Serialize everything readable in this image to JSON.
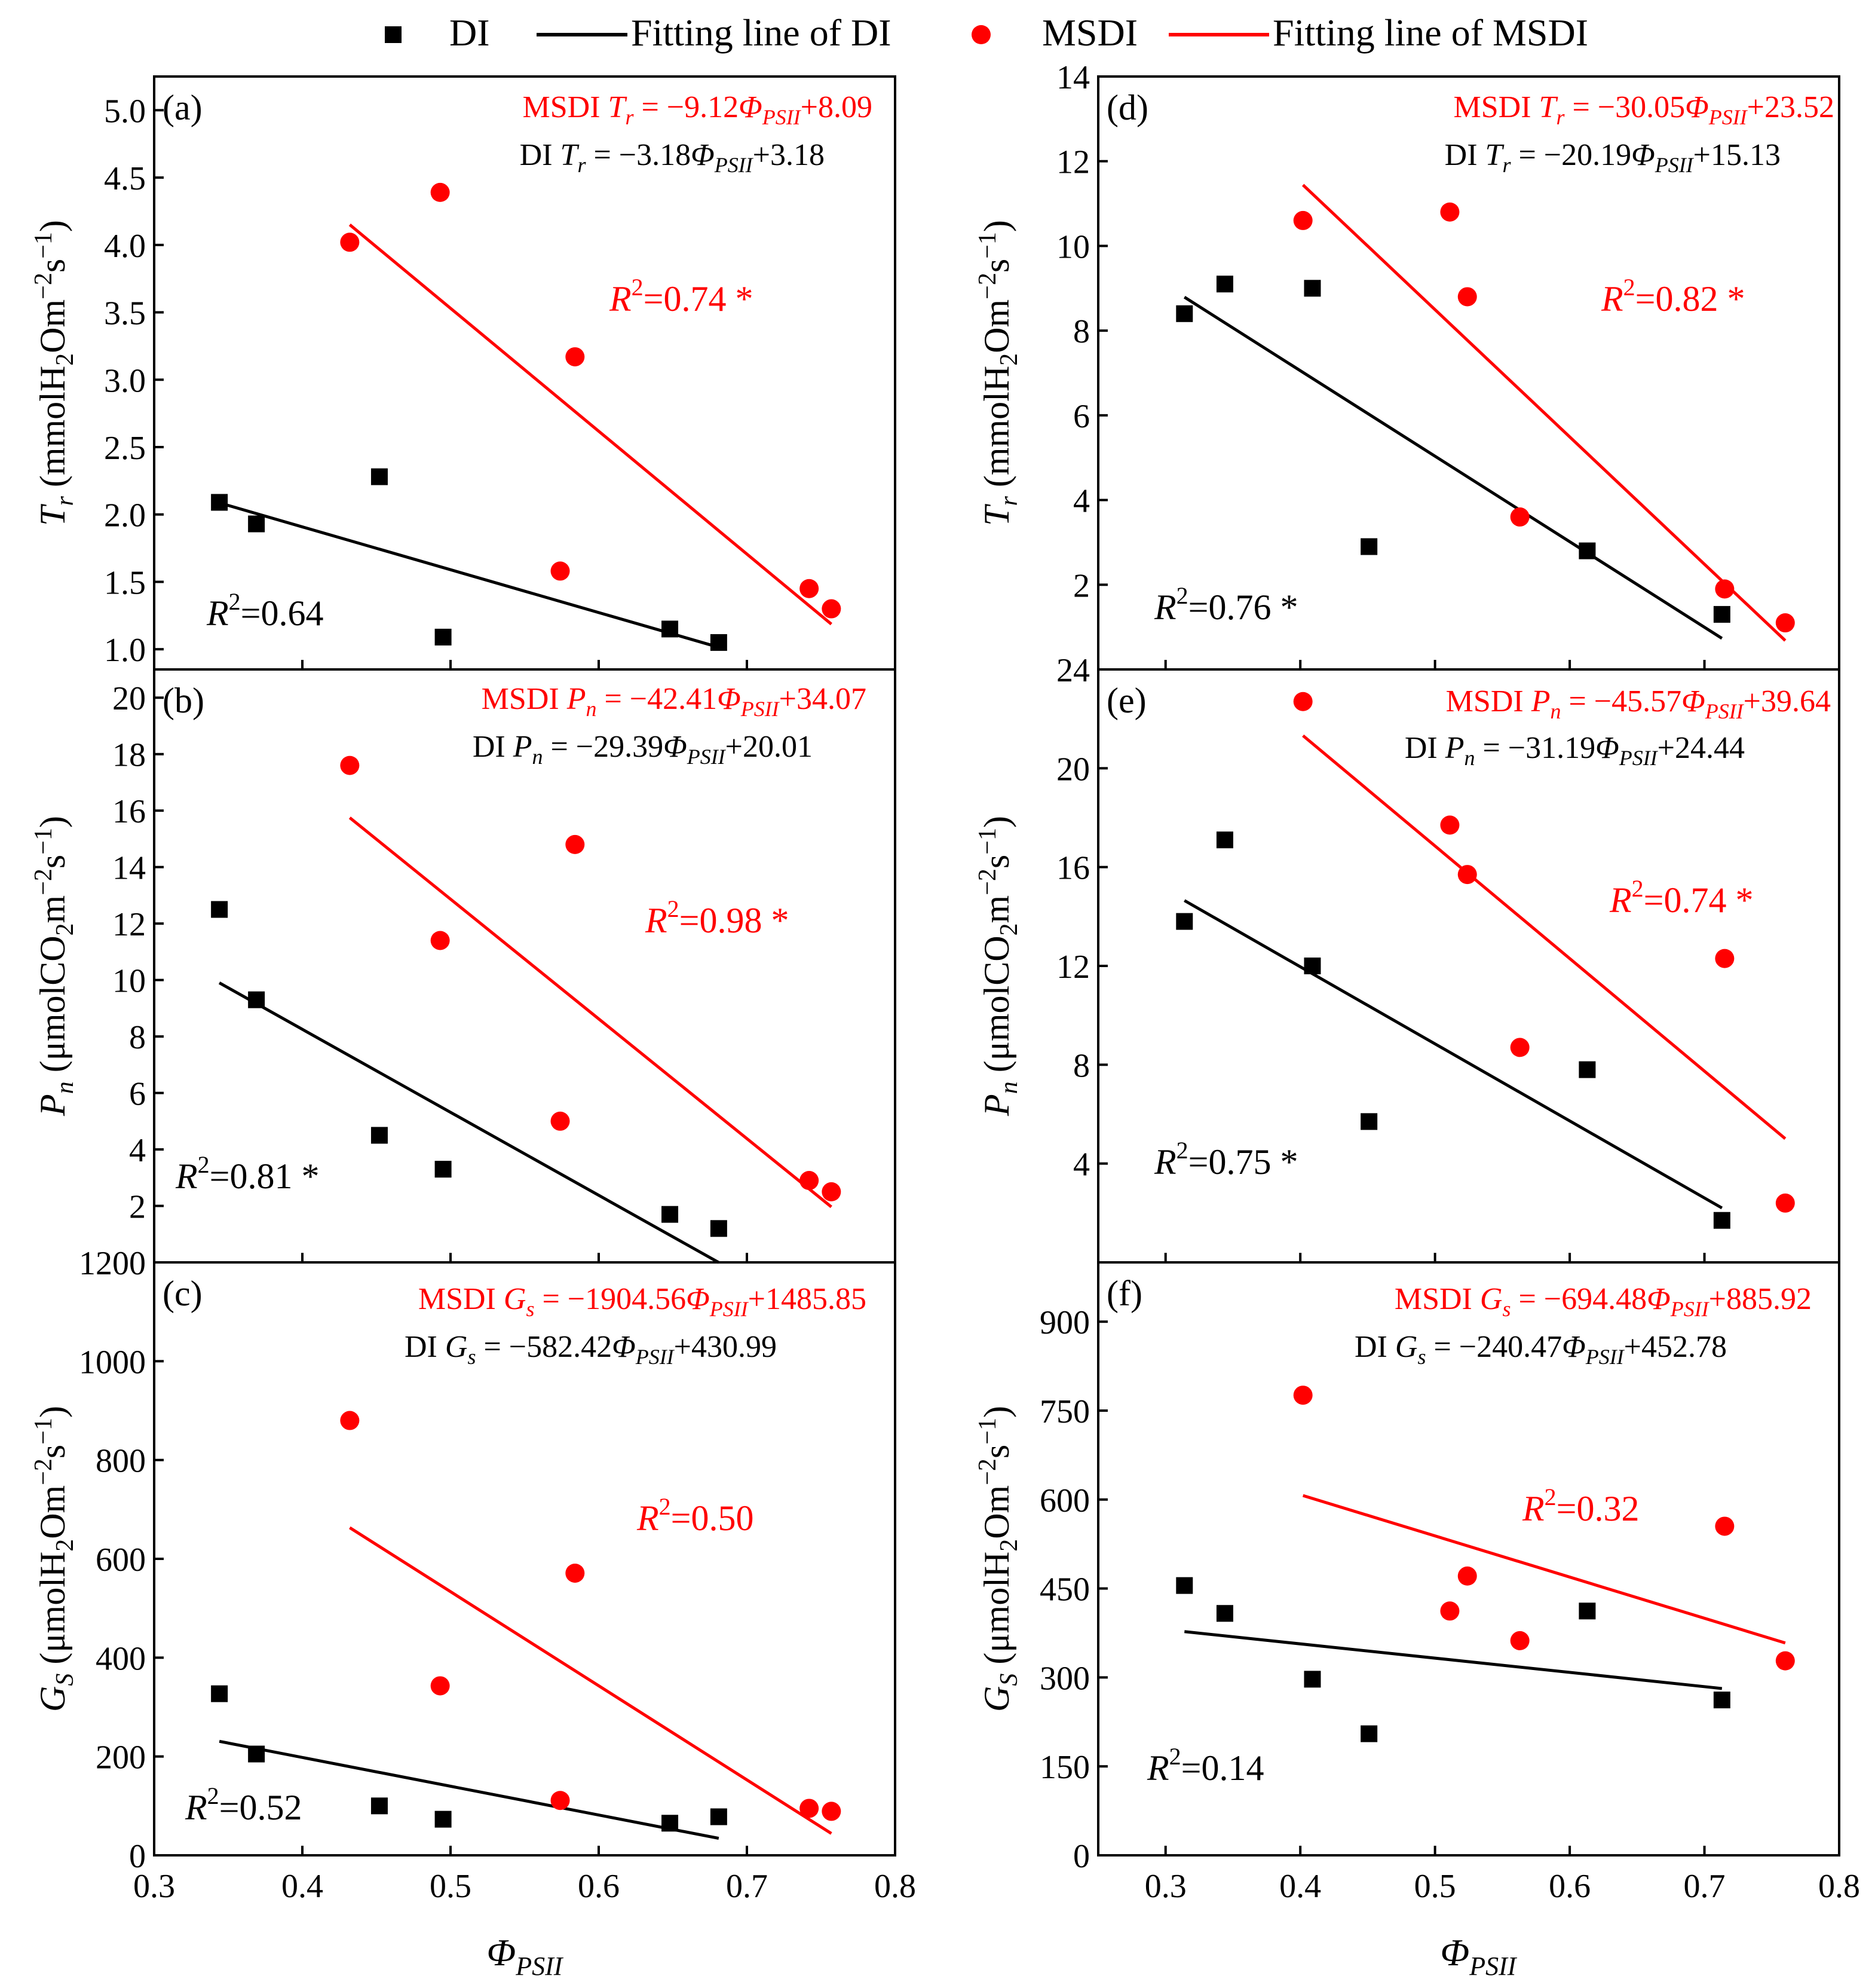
{
  "legend": {
    "di_label": "DI",
    "di_fit_label": "Fitting line of DI",
    "msdi_label": "MSDI",
    "msdi_fit_label": "Fitting line of MSDI"
  },
  "colors": {
    "di": "#000000",
    "msdi": "#ff0000",
    "axis": "#000000",
    "background": "#ffffff"
  },
  "x_axis": {
    "label_main": "Φ",
    "label_sub": "PSII",
    "left": {
      "range": [
        0.3,
        0.8
      ],
      "ticks": [
        0.3,
        0.4,
        0.5,
        0.6,
        0.7,
        0.8
      ],
      "tick_labels": [
        "0.3",
        "0.4",
        "0.5",
        "0.6",
        "0.7",
        "0.8"
      ]
    },
    "right": {
      "range": [
        0.25,
        0.8
      ],
      "ticks": [
        0.3,
        0.4,
        0.5,
        0.6,
        0.7,
        0.8
      ],
      "tick_labels": [
        "0.3",
        "0.4",
        "0.5",
        "0.6",
        "0.7",
        "0.8"
      ]
    }
  },
  "chart_data": [
    {
      "type": "scatter",
      "panel": "(a)",
      "ylabel": {
        "var": "T",
        "var_sub": "r",
        "pre": "(mmolH",
        "chem_sub": "2",
        "mid": "Om",
        "sup1": "−2",
        "post": "s",
        "sup2": "−1",
        "end": ")"
      },
      "xlim": [
        0.3,
        0.8
      ],
      "ylim": [
        0.85,
        5.25
      ],
      "yticks": [
        1.0,
        1.5,
        2.0,
        2.5,
        3.0,
        3.5,
        4.0,
        4.5,
        5.0
      ],
      "ytick_labels": [
        "1.0",
        "1.5",
        "2.0",
        "2.5",
        "3.0",
        "3.5",
        "4.0",
        "4.5",
        "5.0"
      ],
      "series": [
        {
          "name": "DI",
          "marker": "square",
          "x": [
            0.344,
            0.369,
            0.452,
            0.495,
            0.648,
            0.681
          ],
          "y": [
            2.09,
            1.93,
            2.28,
            1.09,
            1.15,
            1.05
          ],
          "fit": {
            "slope": -3.18,
            "intercept": 3.18,
            "x_range": [
              0.344,
              0.681
            ]
          }
        },
        {
          "name": "MSDI",
          "marker": "circle",
          "x": [
            0.432,
            0.493,
            0.584,
            0.574,
            0.742,
            0.757
          ],
          "y": [
            4.02,
            4.39,
            3.17,
            1.58,
            1.45,
            1.3
          ],
          "fit": {
            "slope": -9.12,
            "intercept": 8.09,
            "x_range": [
              0.432,
              0.757
            ]
          }
        }
      ],
      "equations": [
        {
          "series": "MSDI",
          "text_pre": "MSDI ",
          "var": "T",
          "var_sub": "r",
          "text_mid": " = −9.12",
          "text_post": "+8.09"
        },
        {
          "series": "DI",
          "text_pre": "DI ",
          "var": "T",
          "var_sub": "r",
          "text_mid": " = −3.18",
          "text_post": "+3.18"
        }
      ],
      "r2": [
        {
          "series": "MSDI",
          "value": "=0.74 *"
        },
        {
          "series": "DI",
          "value": "=0.64"
        }
      ]
    },
    {
      "type": "scatter",
      "panel": "(b)",
      "ylabel": {
        "var": "P",
        "var_sub": "n",
        "pre": "(μmolCO",
        "chem_sub": "2",
        "mid": "m",
        "sup1": "−2",
        "post": "s",
        "sup2": "−1",
        "end": ")"
      },
      "xlim": [
        0.3,
        0.8
      ],
      "ylim": [
        0,
        21
      ],
      "yticks": [
        2,
        4,
        6,
        8,
        10,
        12,
        14,
        16,
        18,
        20
      ],
      "ytick_labels": [
        "2",
        "4",
        "6",
        "8",
        "10",
        "12",
        "14",
        "16",
        "18",
        "20"
      ],
      "series": [
        {
          "name": "DI",
          "marker": "square",
          "x": [
            0.344,
            0.369,
            0.452,
            0.495,
            0.648,
            0.681
          ],
          "y": [
            12.5,
            9.3,
            4.5,
            3.3,
            1.7,
            1.2
          ],
          "fit": {
            "slope": -29.39,
            "intercept": 20.01,
            "x_range": [
              0.344,
              0.681
            ]
          }
        },
        {
          "name": "MSDI",
          "marker": "circle",
          "x": [
            0.432,
            0.493,
            0.584,
            0.574,
            0.742,
            0.757
          ],
          "y": [
            17.6,
            11.4,
            14.8,
            5.0,
            2.9,
            2.5
          ],
          "fit": {
            "slope": -42.41,
            "intercept": 34.07,
            "x_range": [
              0.432,
              0.757
            ]
          }
        }
      ],
      "equations": [
        {
          "series": "MSDI",
          "text_pre": "MSDI ",
          "var": "P",
          "var_sub": "n",
          "text_mid": " = −42.41",
          "text_post": "+34.07"
        },
        {
          "series": "DI",
          "text_pre": "DI ",
          "var": "P",
          "var_sub": "n",
          "text_mid": " = −29.39",
          "text_post": "+20.01"
        }
      ],
      "r2": [
        {
          "series": "MSDI",
          "value": "=0.98 *"
        },
        {
          "series": "DI",
          "value": "=0.81 *"
        }
      ]
    },
    {
      "type": "scatter",
      "panel": "(c)",
      "ylabel": {
        "var": "G",
        "var_sub": "S",
        "pre": "(μmolH",
        "chem_sub": "2",
        "mid": "Om",
        "sup1": "−2",
        "post": "s",
        "sup2": "−1",
        "end": ")"
      },
      "xlim": [
        0.3,
        0.8
      ],
      "ylim": [
        0,
        1200
      ],
      "yticks": [
        0,
        200,
        400,
        600,
        800,
        1000,
        1200
      ],
      "ytick_labels": [
        "0",
        "200",
        "400",
        "600",
        "800",
        "1000",
        "1200"
      ],
      "series": [
        {
          "name": "DI",
          "marker": "square",
          "x": [
            0.344,
            0.369,
            0.452,
            0.495,
            0.648,
            0.681
          ],
          "y": [
            327,
            205,
            100,
            73,
            65,
            78
          ],
          "fit": {
            "slope": -582.42,
            "intercept": 430.99,
            "x_range": [
              0.344,
              0.681
            ]
          }
        },
        {
          "name": "MSDI",
          "marker": "circle",
          "x": [
            0.432,
            0.493,
            0.584,
            0.574,
            0.742,
            0.757
          ],
          "y": [
            880,
            343,
            571,
            111,
            95,
            89
          ],
          "fit": {
            "slope": -1904.56,
            "intercept": 1485.85,
            "x_range": [
              0.432,
              0.757
            ]
          }
        }
      ],
      "equations": [
        {
          "series": "MSDI",
          "text_pre": "MSDI ",
          "var": "G",
          "var_sub": "s",
          "text_mid": " = −1904.56",
          "text_post": "+1485.85"
        },
        {
          "series": "DI",
          "text_pre": "DI ",
          "var": "G",
          "var_sub": "s",
          "text_mid": " = −582.42",
          "text_post": "+430.99"
        }
      ],
      "r2": [
        {
          "series": "MSDI",
          "value": "=0.50"
        },
        {
          "series": "DI",
          "value": "=0.52"
        }
      ]
    },
    {
      "type": "scatter",
      "panel": "(d)",
      "ylabel": {
        "var": "T",
        "var_sub": "r",
        "pre": "(mmolH",
        "chem_sub": "2",
        "mid": "Om",
        "sup1": "−2",
        "post": "s",
        "sup2": "−1",
        "end": ")"
      },
      "xlim": [
        0.25,
        0.8
      ],
      "ylim": [
        0,
        14
      ],
      "yticks": [
        2,
        4,
        6,
        8,
        10,
        12,
        14
      ],
      "ytick_labels": [
        "2",
        "4",
        "6",
        "8",
        "10",
        "12",
        "14"
      ],
      "series": [
        {
          "name": "DI",
          "marker": "square",
          "x": [
            0.314,
            0.344,
            0.409,
            0.451,
            0.613,
            0.713
          ],
          "y": [
            8.4,
            9.1,
            9.0,
            2.9,
            2.8,
            1.3
          ],
          "fit": {
            "slope": -20.19,
            "intercept": 15.13,
            "x_range": [
              0.314,
              0.713
            ]
          }
        },
        {
          "name": "MSDI",
          "marker": "circle",
          "x": [
            0.402,
            0.511,
            0.524,
            0.563,
            0.715,
            0.76
          ],
          "y": [
            10.6,
            10.8,
            8.8,
            3.6,
            1.9,
            1.1
          ],
          "fit": {
            "slope": -30.05,
            "intercept": 23.52,
            "x_range": [
              0.402,
              0.76
            ]
          }
        }
      ],
      "equations": [
        {
          "series": "MSDI",
          "text_pre": "MSDI ",
          "var": "T",
          "var_sub": "r",
          "text_mid": " = −30.05",
          "text_post": "+23.52"
        },
        {
          "series": "DI",
          "text_pre": "DI ",
          "var": "T",
          "var_sub": "r",
          "text_mid": " = −20.19",
          "text_post": "+15.13"
        }
      ],
      "r2": [
        {
          "series": "MSDI",
          "value": "=0.82 *"
        },
        {
          "series": "DI",
          "value": "=0.76 *"
        }
      ]
    },
    {
      "type": "scatter",
      "panel": "(e)",
      "ylabel": {
        "var": "P",
        "var_sub": "n",
        "pre": "(μmolCO",
        "chem_sub": "2",
        "mid": "m",
        "sup1": "−2",
        "post": "s",
        "sup2": "−1",
        "end": ")"
      },
      "xlim": [
        0.25,
        0.8
      ],
      "ylim": [
        0,
        24
      ],
      "yticks": [
        4,
        8,
        12,
        16,
        20,
        24
      ],
      "ytick_labels": [
        "4",
        "8",
        "12",
        "16",
        "20",
        "24"
      ],
      "series": [
        {
          "name": "DI",
          "marker": "square",
          "x": [
            0.314,
            0.344,
            0.409,
            0.451,
            0.613,
            0.713
          ],
          "y": [
            13.8,
            17.1,
            12.0,
            5.7,
            7.8,
            1.7
          ],
          "fit": {
            "slope": -31.19,
            "intercept": 24.44,
            "x_range": [
              0.314,
              0.713
            ]
          }
        },
        {
          "name": "MSDI",
          "marker": "circle",
          "x": [
            0.402,
            0.511,
            0.524,
            0.563,
            0.715,
            0.76
          ],
          "y": [
            22.7,
            17.7,
            15.7,
            8.7,
            12.3,
            2.4
          ],
          "fit": {
            "slope": -45.57,
            "intercept": 39.64,
            "x_range": [
              0.402,
              0.76
            ]
          }
        }
      ],
      "equations": [
        {
          "series": "MSDI",
          "text_pre": "MSDI ",
          "var": "P",
          "var_sub": "n",
          "text_mid": " = −45.57",
          "text_post": "+39.64"
        },
        {
          "series": "DI",
          "text_pre": "DI ",
          "var": "P",
          "var_sub": "n",
          "text_mid": " = −31.19",
          "text_post": "+24.44"
        }
      ],
      "r2": [
        {
          "series": "MSDI",
          "value": "=0.74 *"
        },
        {
          "series": "DI",
          "value": "=0.75 *"
        }
      ]
    },
    {
      "type": "scatter",
      "panel": "(f)",
      "ylabel": {
        "var": "G",
        "var_sub": "S",
        "pre": "(μmolH",
        "chem_sub": "2",
        "mid": "Om",
        "sup1": "−2",
        "post": "s",
        "sup2": "−1",
        "end": ")"
      },
      "xlim": [
        0.25,
        0.8
      ],
      "ylim": [
        0,
        1000
      ],
      "yticks": [
        0,
        150,
        300,
        450,
        600,
        750,
        900
      ],
      "ytick_labels": [
        "0",
        "150",
        "300",
        "450",
        "600",
        "750",
        "900"
      ],
      "series": [
        {
          "name": "DI",
          "marker": "square",
          "x": [
            0.314,
            0.344,
            0.409,
            0.451,
            0.613,
            0.713
          ],
          "y": [
            455,
            408,
            297,
            205,
            412,
            262
          ],
          "fit": {
            "slope": -240.47,
            "intercept": 452.78,
            "x_range": [
              0.314,
              0.713
            ]
          }
        },
        {
          "name": "MSDI",
          "marker": "circle",
          "x": [
            0.402,
            0.511,
            0.524,
            0.563,
            0.715,
            0.76
          ],
          "y": [
            776,
            412,
            471,
            362,
            555,
            328
          ],
          "fit": {
            "slope": -694.48,
            "intercept": 885.92,
            "x_range": [
              0.402,
              0.76
            ]
          }
        }
      ],
      "equations": [
        {
          "series": "MSDI",
          "text_pre": "MSDI ",
          "var": "G",
          "var_sub": "s",
          "text_mid": " = −694.48",
          "text_post": "+885.92"
        },
        {
          "series": "DI",
          "text_pre": "DI ",
          "var": "G",
          "var_sub": "s",
          "text_mid": " = −240.47",
          "text_post": "+452.78"
        }
      ],
      "r2": [
        {
          "series": "MSDI",
          "value": "=0.32"
        },
        {
          "series": "DI",
          "value": "=0.14"
        }
      ]
    }
  ]
}
